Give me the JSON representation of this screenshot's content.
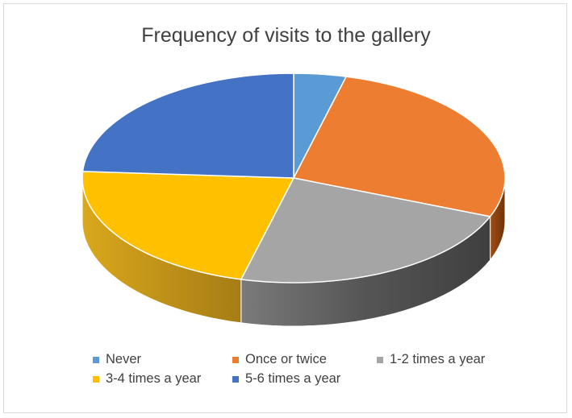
{
  "chart_data": {
    "type": "pie",
    "title": "Frequency of visits to the gallery",
    "categories": [
      "Never",
      "Once or twice",
      "1-2 times a year",
      "3-4 times a year",
      "5-6 times a year"
    ],
    "values": [
      4,
      27,
      23,
      22,
      24
    ],
    "colors": [
      "#5b9bd5",
      "#ed7d31",
      "#a5a5a5",
      "#ffc000",
      "#4472c4"
    ],
    "legend_position": "bottom",
    "style": "3d-pie"
  }
}
